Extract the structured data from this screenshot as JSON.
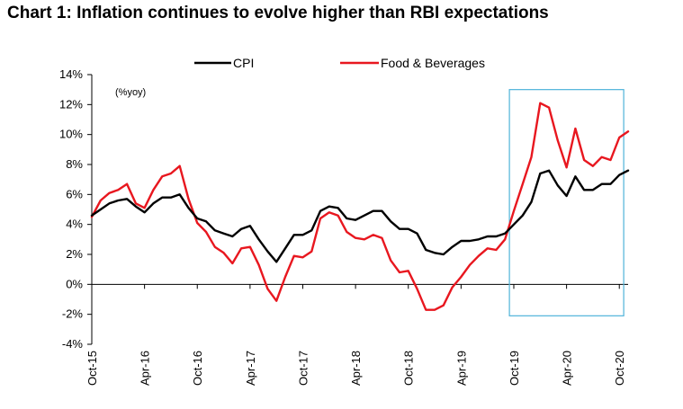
{
  "chart_data": {
    "type": "line",
    "title": "Chart 1:  Inflation continues to evolve higher than RBI expectations",
    "annotation": "(%yoy)",
    "xlabel": "",
    "ylabel": "",
    "ylim": [
      -4,
      14
    ],
    "yticks": [
      -4,
      -2,
      0,
      2,
      4,
      6,
      8,
      10,
      12,
      14
    ],
    "ytick_labels": [
      "-4%",
      "-2%",
      "0%",
      "2%",
      "4%",
      "6%",
      "8%",
      "10%",
      "12%",
      "14%"
    ],
    "xtick_labels": [
      "Oct-15",
      "Apr-16",
      "Oct-16",
      "Apr-17",
      "Oct-17",
      "Apr-18",
      "Oct-18",
      "Apr-19",
      "Oct-19",
      "Apr-20",
      "Oct-20"
    ],
    "xtick_index": [
      0,
      6,
      12,
      18,
      24,
      30,
      36,
      42,
      48,
      54,
      60
    ],
    "grid": false,
    "legend": "top",
    "highlight_box": {
      "x_index": [
        47.5,
        60.5
      ],
      "y": [
        -2.1,
        13
      ],
      "color": "#4fb3d9"
    },
    "series": [
      {
        "name": "CPI",
        "color": "#000000",
        "values": [
          4.6,
          5.0,
          5.4,
          5.6,
          5.7,
          5.2,
          4.8,
          5.4,
          5.8,
          5.8,
          6.0,
          5.1,
          4.4,
          4.2,
          3.6,
          3.4,
          3.2,
          3.7,
          3.9,
          3.0,
          2.2,
          1.5,
          2.4,
          3.3,
          3.3,
          3.6,
          4.9,
          5.2,
          5.1,
          4.4,
          4.3,
          4.6,
          4.9,
          4.9,
          4.2,
          3.7,
          3.7,
          3.4,
          2.3,
          2.1,
          2.0,
          2.5,
          2.9,
          2.9,
          3.0,
          3.2,
          3.2,
          3.4,
          4.0,
          4.6,
          5.5,
          7.4,
          7.6,
          6.6,
          5.9,
          7.2,
          6.3,
          6.3,
          6.7,
          6.7,
          7.3,
          7.6
        ]
      },
      {
        "name": "Food & Beverages",
        "color": "#e8171f",
        "values": [
          4.5,
          5.6,
          6.1,
          6.3,
          6.7,
          5.4,
          5.1,
          6.3,
          7.2,
          7.4,
          7.9,
          5.7,
          4.1,
          3.5,
          2.5,
          2.1,
          1.4,
          2.4,
          2.5,
          1.3,
          -0.3,
          -1.1,
          0.5,
          1.9,
          1.8,
          2.2,
          4.4,
          4.8,
          4.6,
          3.5,
          3.1,
          3.0,
          3.3,
          3.1,
          1.6,
          0.8,
          0.9,
          -0.3,
          -1.7,
          -1.7,
          -1.4,
          -0.2,
          0.5,
          1.3,
          1.9,
          2.4,
          2.3,
          3.0,
          4.9,
          6.7,
          8.5,
          12.1,
          11.8,
          9.6,
          7.8,
          10.4,
          8.3,
          7.9,
          8.5,
          8.3,
          9.8,
          10.2
        ]
      }
    ]
  }
}
